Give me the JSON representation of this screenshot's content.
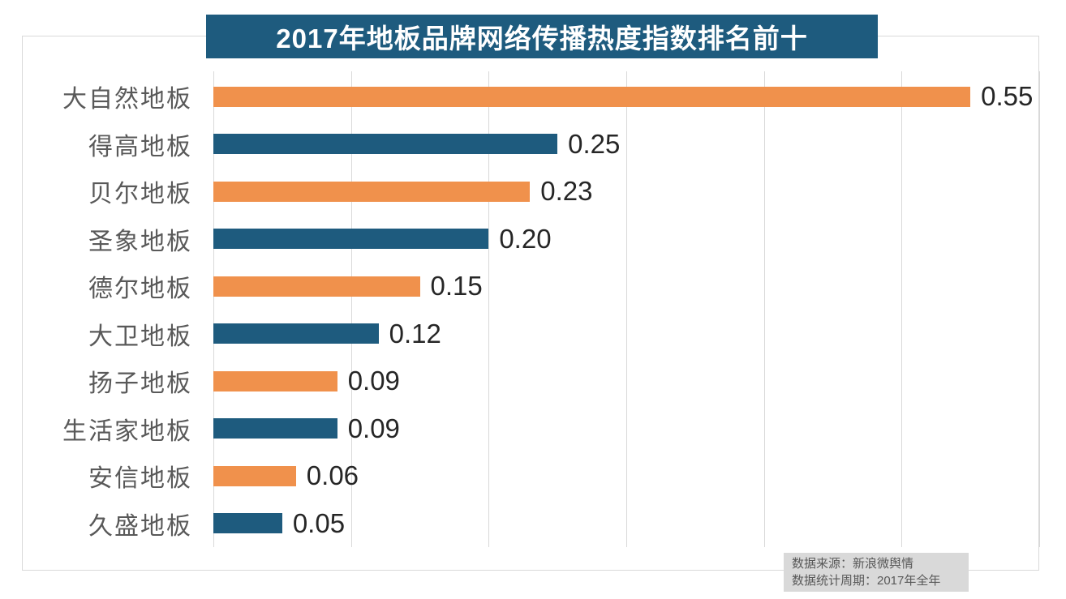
{
  "chart_data": {
    "type": "bar",
    "orientation": "horizontal",
    "title": "2017年地板品牌网络传播热度指数排名前十",
    "categories": [
      "大自然地板",
      "得高地板",
      "贝尔地板",
      "圣象地板",
      "德尔地板",
      "大卫地板",
      "扬子地板",
      "生活家地板",
      "安信地板",
      "久盛地板"
    ],
    "values": [
      0.55,
      0.25,
      0.23,
      0.2,
      0.15,
      0.12,
      0.09,
      0.09,
      0.06,
      0.05
    ],
    "value_labels": [
      "0.55",
      "0.25",
      "0.23",
      "0.20",
      "0.15",
      "0.12",
      "0.09",
      "0.09",
      "0.06",
      "0.05"
    ],
    "xlim": [
      0,
      0.6
    ],
    "grid_interval": 0.1,
    "grid": true,
    "legend": "none",
    "bar_colors_alternating": [
      "#F0914C",
      "#1E5B7E"
    ]
  },
  "footer": {
    "source": "数据来源：新浪微舆情",
    "period": "数据统计周期：2017年全年"
  },
  "colors": {
    "orange_bar": "#F0914C",
    "blue_bar": "#1E5B7E",
    "title_bg": "#1E5B7E",
    "title_text": "#FFFFFF",
    "gridline": "#D9D9D9",
    "category_label": "#595959",
    "value_label": "#262626",
    "footer_bg": "#D9D9D9",
    "footer_text": "#595959"
  }
}
